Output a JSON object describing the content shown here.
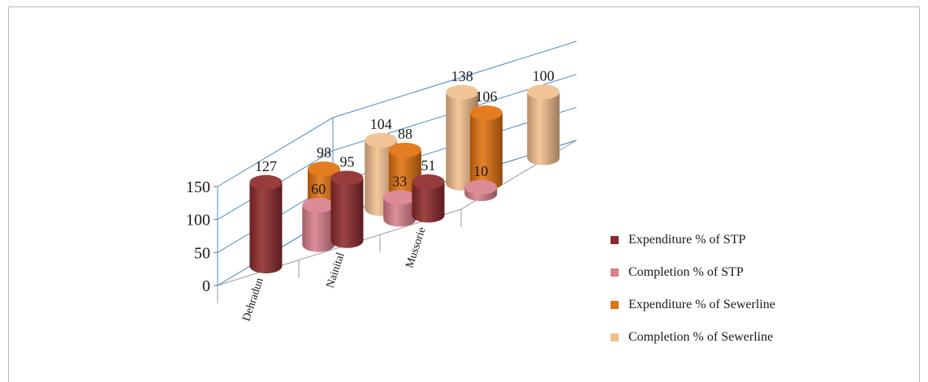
{
  "chart_data": {
    "type": "bar",
    "style": "3d-cylinder",
    "categories": [
      "Dehradun",
      "Nainital",
      "Mussorie"
    ],
    "series": [
      {
        "name": "Expenditure % of STP",
        "values": [
          127,
          95,
          51
        ],
        "color": "#8e2a2c"
      },
      {
        "name": "Completion % of STP",
        "values": [
          60,
          33,
          10
        ],
        "color": "#d9808c"
      },
      {
        "name": "Expenditure % of Sewerline",
        "values": [
          98,
          88,
          106
        ],
        "color": "#e2720f"
      },
      {
        "name": "Completion % of Sewerline",
        "values": [
          104,
          138,
          100
        ],
        "color": "#f2bf8f"
      }
    ],
    "yticks": [
      0,
      50,
      100,
      150
    ],
    "ylim": [
      0,
      150
    ],
    "grid": true,
    "legend_position": "right"
  }
}
